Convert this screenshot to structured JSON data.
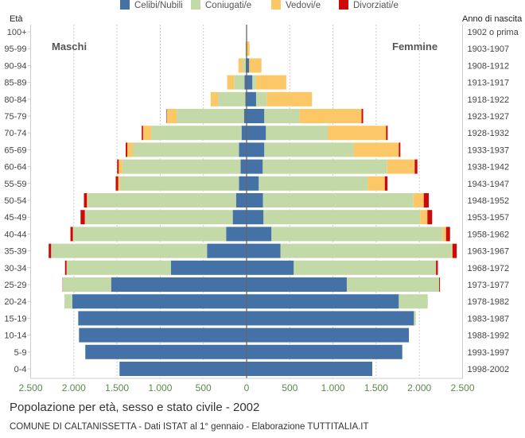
{
  "chart_data": {
    "type": "bar",
    "subtype": "population-pyramid",
    "title": "Popolazione per età, sesso e stato civile - 2002",
    "source": "COMUNE DI CALTANISSETTA - Dati ISTAT al 1° gennaio - Elaborazione TUTTITALIA.IT",
    "left_axis_title": "Età",
    "right_axis_title": "Anno di nascita",
    "male_label": "Maschi",
    "female_label": "Femmine",
    "xlim": [
      -2500,
      2500
    ],
    "x_ticks": [
      -2500,
      -2000,
      -1500,
      -1000,
      -500,
      0,
      500,
      1000,
      1500,
      2000,
      2500
    ],
    "x_tick_labels": [
      "2.500",
      "2.000",
      "1.500",
      "1.000",
      "500",
      "0",
      "500",
      "1.000",
      "1.500",
      "2.000",
      "2.500"
    ],
    "legend_position": "top",
    "series_names": [
      "Celibi/Nubili",
      "Coniugati/e",
      "Vedovi/e",
      "Divorziati/e"
    ],
    "colors": [
      "#4472a6",
      "#c4d9a8",
      "#fcc766",
      "#cc0a0a"
    ],
    "categories": [
      "100+",
      "95-99",
      "90-94",
      "85-89",
      "80-84",
      "75-79",
      "70-74",
      "65-69",
      "60-64",
      "55-59",
      "50-54",
      "45-49",
      "40-44",
      "35-39",
      "30-34",
      "25-29",
      "20-24",
      "15-19",
      "10-14",
      "5-9",
      "0-4"
    ],
    "birth_years": [
      "1902 o prima",
      "1903-1907",
      "1908-1912",
      "1913-1917",
      "1918-1922",
      "1923-1927",
      "1928-1932",
      "1933-1937",
      "1938-1942",
      "1943-1947",
      "1948-1952",
      "1953-1957",
      "1958-1962",
      "1963-1967",
      "1968-1972",
      "1973-1977",
      "1978-1982",
      "1983-1987",
      "1988-1992",
      "1993-1997",
      "1998-2002"
    ],
    "males": {
      "celibi": [
        0,
        0,
        10,
        25,
        15,
        30,
        58,
        89,
        70,
        89,
        122,
        160,
        237,
        458,
        875,
        1568,
        2017,
        1949,
        1940,
        1867,
        1471
      ],
      "coniugati": [
        0,
        0,
        35,
        120,
        316,
        780,
        1046,
        1228,
        1368,
        1376,
        1717,
        1710,
        1774,
        1805,
        1209,
        559,
        92,
        0,
        0,
        0,
        0
      ],
      "vedovi": [
        0,
        12,
        50,
        80,
        85,
        113,
        95,
        64,
        42,
        22,
        10,
        3,
        0,
        0,
        0,
        0,
        0,
        0,
        0,
        0,
        0
      ],
      "divorziati": [
        0,
        0,
        0,
        0,
        0,
        5,
        15,
        18,
        18,
        28,
        34,
        49,
        28,
        28,
        18,
        3,
        0,
        0,
        0,
        0,
        0
      ]
    },
    "females": {
      "celibi": [
        0,
        0,
        30,
        67,
        110,
        205,
        224,
        205,
        187,
        141,
        190,
        196,
        288,
        393,
        546,
        1160,
        1762,
        1937,
        1879,
        1802,
        1455
      ],
      "coniugati": [
        0,
        0,
        0,
        43,
        123,
        408,
        715,
        1037,
        1440,
        1262,
        1741,
        1814,
        1984,
        1981,
        1647,
        1069,
        335,
        21,
        0,
        0,
        0
      ],
      "vedovi": [
        3,
        34,
        142,
        350,
        525,
        718,
        676,
        520,
        319,
        197,
        120,
        83,
        37,
        10,
        0,
        0,
        0,
        0,
        0,
        0,
        0
      ],
      "divorziati": [
        0,
        0,
        0,
        0,
        0,
        18,
        18,
        18,
        31,
        31,
        58,
        55,
        46,
        49,
        21,
        9,
        0,
        0,
        0,
        0,
        0
      ]
    }
  }
}
